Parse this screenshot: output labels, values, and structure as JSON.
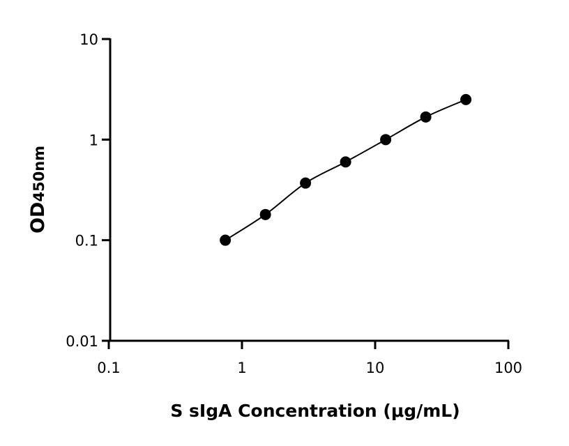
{
  "chart_data": {
    "type": "scatter",
    "title": "",
    "xlabel": "S sIgA Concentration (μg/mL)",
    "ylabel": {
      "main": "OD",
      "sub": "450nm"
    },
    "x_scale": "log",
    "y_scale": "log",
    "xlim": [
      0.1,
      100
    ],
    "ylim": [
      0.01,
      10
    ],
    "x_ticks": [
      "0.1",
      "1",
      "10",
      "100"
    ],
    "y_ticks": [
      "0.01",
      "0.1",
      "1",
      "10"
    ],
    "grid": false,
    "fit_line": true,
    "colors": {
      "points": "#000000",
      "line": "#000000"
    },
    "points": [
      {
        "x": 0.75,
        "y": 0.1
      },
      {
        "x": 1.5,
        "y": 0.18
      },
      {
        "x": 3,
        "y": 0.37
      },
      {
        "x": 6,
        "y": 0.6
      },
      {
        "x": 12,
        "y": 1.0
      },
      {
        "x": 24,
        "y": 1.68
      },
      {
        "x": 48,
        "y": 2.5
      }
    ]
  }
}
